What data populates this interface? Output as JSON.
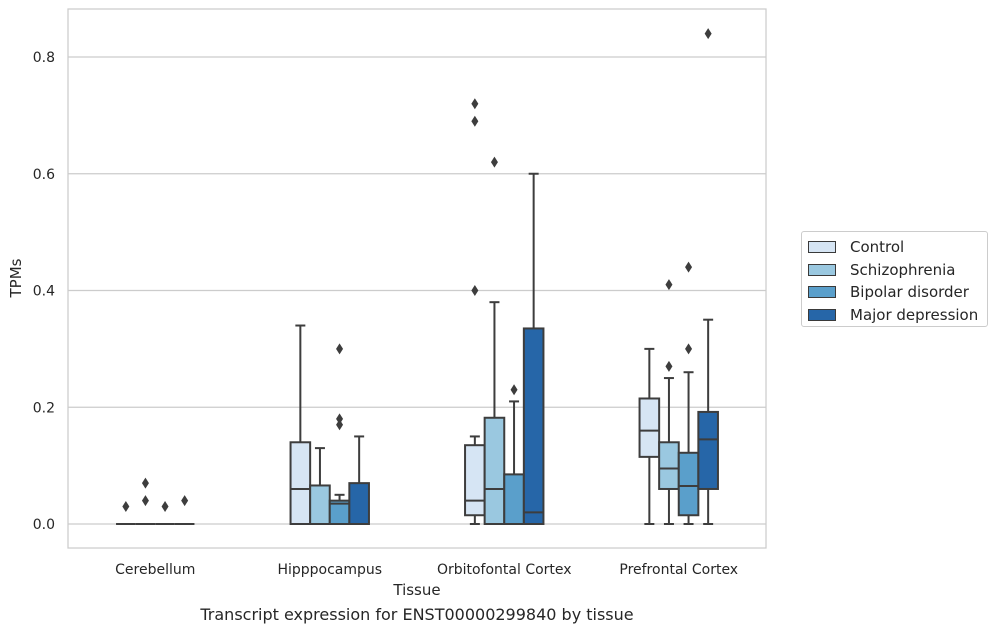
{
  "chart_data": {
    "type": "box",
    "xlabel": "Tissue",
    "ylabel": "TPMs",
    "ylim": [
      -0.04,
      0.885
    ],
    "yticks": [
      0.0,
      0.2,
      0.4,
      0.6,
      0.8
    ],
    "ytick_labels": [
      "0.0",
      "0.2",
      "0.4",
      "0.6",
      "0.8"
    ],
    "grid": "horizontal",
    "legend_position": "right",
    "categories": [
      "Cerebellum",
      "Hipppocampus",
      "Orbitofontal Cortex",
      "Prefrontal Cortex"
    ],
    "series": [
      {
        "name": "Control",
        "color": "#d6e5f4",
        "boxes": [
          {
            "whislo": 0.0,
            "q1": 0.0,
            "med": 0.0,
            "q3": 0.0,
            "whishi": 0.0,
            "fliers": [
              0.03
            ]
          },
          {
            "whislo": 0.0,
            "q1": 0.0,
            "med": 0.06,
            "q3": 0.14,
            "whishi": 0.34,
            "fliers": []
          },
          {
            "whislo": 0.0,
            "q1": 0.015,
            "med": 0.04,
            "q3": 0.135,
            "whishi": 0.15,
            "fliers": [
              0.4,
              0.69,
              0.72
            ]
          },
          {
            "whislo": 0.0,
            "q1": 0.115,
            "med": 0.16,
            "q3": 0.215,
            "whishi": 0.3,
            "fliers": []
          }
        ]
      },
      {
        "name": "Schizophrenia",
        "color": "#9ac8e0",
        "boxes": [
          {
            "whislo": 0.0,
            "q1": 0.0,
            "med": 0.0,
            "q3": 0.0,
            "whishi": 0.0,
            "fliers": [
              0.04,
              0.07
            ]
          },
          {
            "whislo": 0.0,
            "q1": 0.0,
            "med": 0.0,
            "q3": 0.066,
            "whishi": 0.13,
            "fliers": []
          },
          {
            "whislo": 0.0,
            "q1": 0.0,
            "med": 0.06,
            "q3": 0.182,
            "whishi": 0.38,
            "fliers": [
              0.62
            ]
          },
          {
            "whislo": 0.0,
            "q1": 0.06,
            "med": 0.095,
            "q3": 0.14,
            "whishi": 0.25,
            "fliers": [
              0.27,
              0.41
            ]
          }
        ]
      },
      {
        "name": "Bipolar disorder",
        "color": "#5a9fcb",
        "boxes": [
          {
            "whislo": 0.0,
            "q1": 0.0,
            "med": 0.0,
            "q3": 0.0,
            "whishi": 0.0,
            "fliers": [
              0.03
            ]
          },
          {
            "whislo": 0.0,
            "q1": 0.0,
            "med": 0.035,
            "q3": 0.04,
            "whishi": 0.05,
            "fliers": [
              0.17,
              0.18,
              0.3
            ]
          },
          {
            "whislo": 0.0,
            "q1": 0.0,
            "med": 0.0,
            "q3": 0.085,
            "whishi": 0.21,
            "fliers": [
              0.23
            ]
          },
          {
            "whislo": 0.0,
            "q1": 0.015,
            "med": 0.065,
            "q3": 0.122,
            "whishi": 0.26,
            "fliers": [
              0.3,
              0.44
            ]
          }
        ]
      },
      {
        "name": "Major depression",
        "color": "#2666a8",
        "boxes": [
          {
            "whislo": 0.0,
            "q1": 0.0,
            "med": 0.0,
            "q3": 0.0,
            "whishi": 0.0,
            "fliers": [
              0.04
            ]
          },
          {
            "whislo": 0.0,
            "q1": 0.0,
            "med": 0.0,
            "q3": 0.07,
            "whishi": 0.15,
            "fliers": []
          },
          {
            "whislo": 0.0,
            "q1": 0.0,
            "med": 0.02,
            "q3": 0.335,
            "whishi": 0.6,
            "fliers": []
          },
          {
            "whislo": 0.0,
            "q1": 0.06,
            "med": 0.145,
            "q3": 0.192,
            "whishi": 0.35,
            "fliers": [
              0.84
            ]
          }
        ]
      }
    ]
  },
  "caption": "Transcript expression for ENST00000299840 by tissue"
}
